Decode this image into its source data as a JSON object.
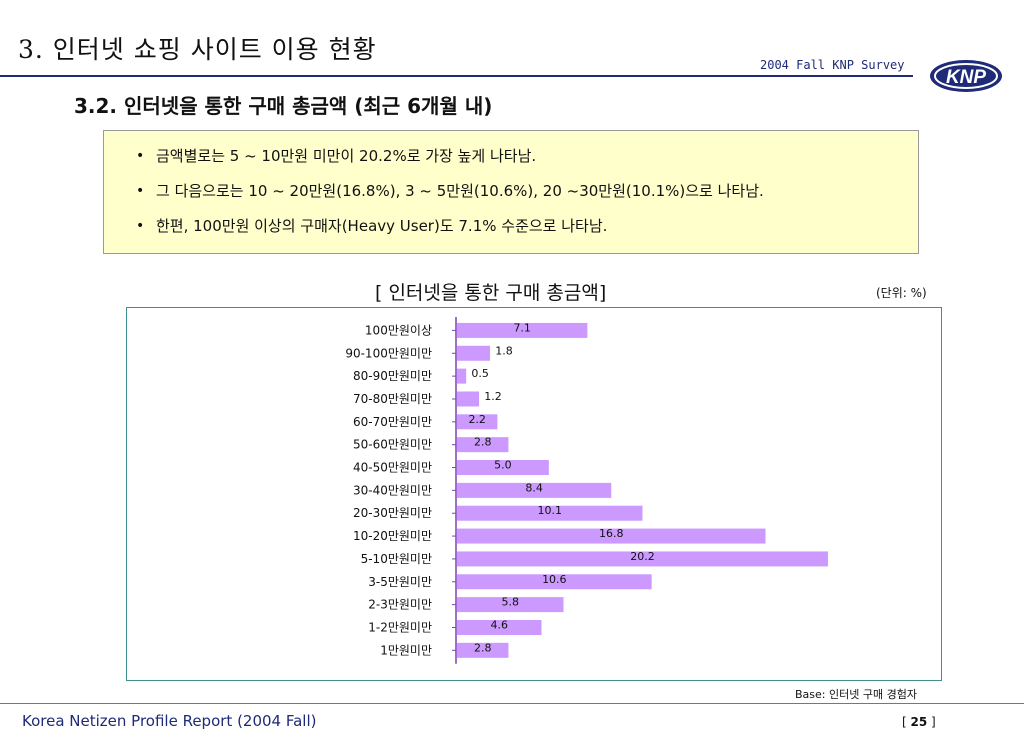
{
  "header": {
    "main_title": "3. 인터넷 쇼핑 사이트 이용 현황",
    "survey_label": "2004 Fall KNP Survey",
    "logo_text": "KNP"
  },
  "section_title": "3.2.  인터넷을 통한 구매 총금액 (최근 6개월 내)",
  "summary": [
    "금액별로는 5 ~ 10만원 미만이 20.2%로 가장 높게 나타남.",
    "그 다음으로는 10 ~ 20만원(16.8%), 3 ~ 5만원(10.6%), 20 ~30만원(10.1%)으로 나타남.",
    "한편, 100만원 이상의 구매자(Heavy User)도 7.1% 수준으로 나타남."
  ],
  "chart_title": "[ 인터넷을 통한 구매 총금액]",
  "unit_label": "(단위: %)",
  "base_note": "Base: 인터넷 구매 경험자",
  "footer": {
    "left": "Korea Netizen Profile Report (2004 Fall)",
    "page_prefix": "[ ",
    "page_number": "25",
    "page_suffix": " ]"
  },
  "colors": {
    "bar": "#cc99ff",
    "header_line": "#1f2a78",
    "frame": "#3f8f8f",
    "summary_bg": "#ffffcc"
  },
  "chart_data": {
    "type": "bar",
    "orientation": "horizontal",
    "categories": [
      "100만원이상",
      "90-100만원미만",
      "80-90만원미만",
      "70-80만원미만",
      "60-70만원미만",
      "50-60만원미만",
      "40-50만원미만",
      "30-40만원미만",
      "20-30만원미만",
      "10-20만원미만",
      "5-10만원미만",
      "3-5만원미만",
      "2-3만원미만",
      "1-2만원미만",
      "1만원미만"
    ],
    "values": [
      7.1,
      1.8,
      0.5,
      1.2,
      2.2,
      2.8,
      5.0,
      8.4,
      10.1,
      16.8,
      20.2,
      10.6,
      5.8,
      4.6,
      2.8
    ],
    "value_labels": [
      "7.1",
      "1.8",
      "0.5",
      "1.2",
      "2.2",
      "2.8",
      "5.0",
      "8.4",
      "10.1",
      "16.8",
      "20.2",
      "10.6",
      "5.8",
      "4.6",
      "2.8"
    ],
    "xlim": [
      0,
      22
    ],
    "grid": false,
    "legend": "none"
  }
}
